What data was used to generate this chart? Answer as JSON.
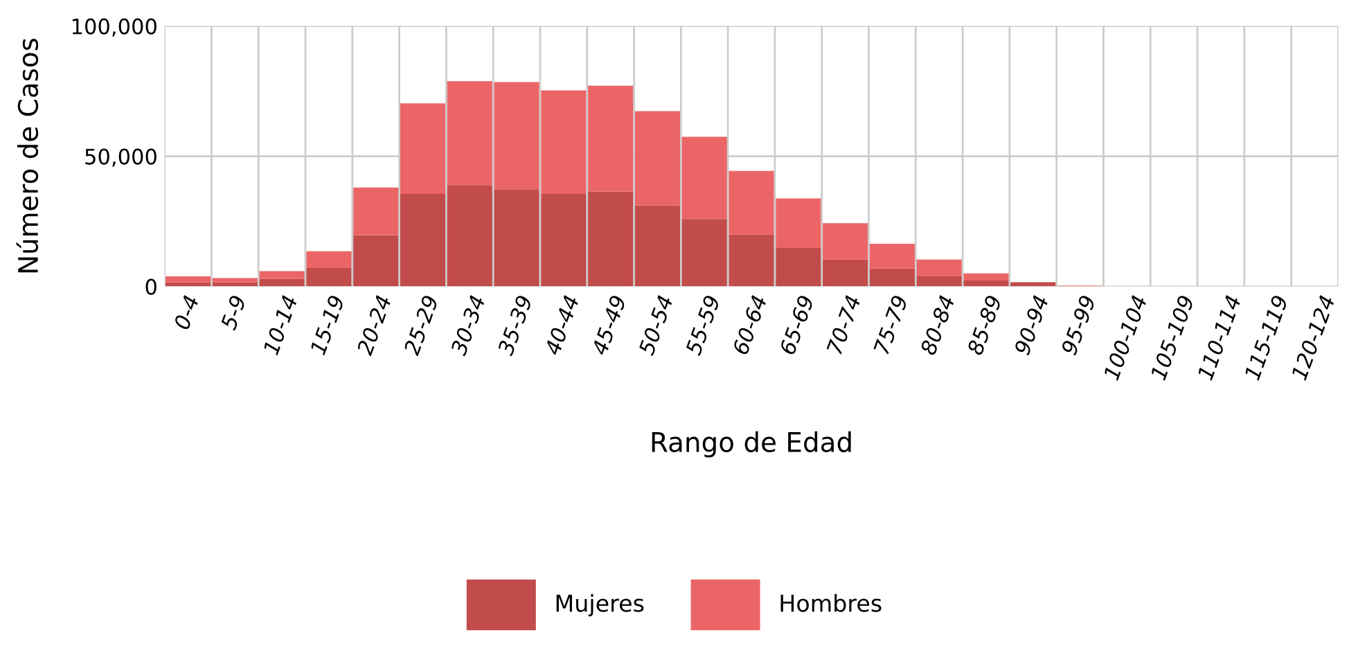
{
  "chart_data": {
    "type": "bar",
    "stacked": true,
    "xlabel": "Rango de Edad",
    "ylabel": "Número de Casos",
    "categories": [
      "0-4",
      "5-9",
      "10-14",
      "15-19",
      "20-24",
      "25-29",
      "30-34",
      "35-39",
      "40-44",
      "45-49",
      "50-54",
      "55-59",
      "60-64",
      "65-69",
      "70-74",
      "75-79",
      "80-84",
      "85-89",
      "90-94",
      "95-99",
      "100-104",
      "105-109",
      "110-114",
      "115-119",
      "120-124"
    ],
    "series": [
      {
        "name": "Mujeres",
        "color": "#c24b4b",
        "values": [
          1600,
          1600,
          2900,
          7100,
          19700,
          35500,
          38900,
          37300,
          35500,
          36400,
          31100,
          25900,
          19900,
          14800,
          10300,
          6900,
          4100,
          2300,
          1600,
          0,
          0,
          0,
          0,
          0,
          0
        ]
      },
      {
        "name": "Hombres",
        "color": "#ec6566",
        "values": [
          2300,
          1600,
          3000,
          6400,
          18300,
          34800,
          39900,
          41200,
          39800,
          40700,
          36200,
          31600,
          24500,
          19000,
          14000,
          9500,
          6200,
          2700,
          0,
          300,
          0,
          0,
          0,
          0,
          0
        ]
      }
    ],
    "ylim": [
      0,
      100000
    ],
    "yticks": [
      {
        "value": 0,
        "label": "0"
      },
      {
        "value": 50000,
        "label": "50,000"
      },
      {
        "value": 100000,
        "label": "100,000"
      }
    ],
    "grid": true,
    "legend": "bottom"
  }
}
